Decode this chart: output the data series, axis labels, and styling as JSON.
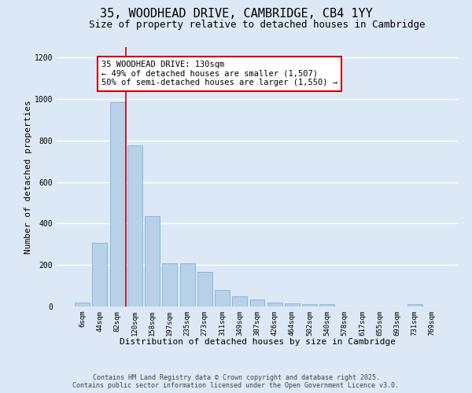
{
  "title_line1": "35, WOODHEAD DRIVE, CAMBRIDGE, CB4 1YY",
  "title_line2": "Size of property relative to detached houses in Cambridge",
  "xlabel": "Distribution of detached houses by size in Cambridge",
  "ylabel": "Number of detached properties",
  "categories": [
    "6sqm",
    "44sqm",
    "82sqm",
    "120sqm",
    "158sqm",
    "197sqm",
    "235sqm",
    "273sqm",
    "311sqm",
    "349sqm",
    "387sqm",
    "426sqm",
    "464sqm",
    "502sqm",
    "540sqm",
    "578sqm",
    "617sqm",
    "655sqm",
    "693sqm",
    "731sqm",
    "769sqm"
  ],
  "values": [
    20,
    305,
    985,
    775,
    435,
    210,
    210,
    165,
    80,
    50,
    35,
    20,
    15,
    10,
    10,
    0,
    0,
    0,
    0,
    10,
    0
  ],
  "bar_color": "#b8d0e8",
  "bar_edge_color": "#6baed6",
  "background_color": "#dce8f5",
  "grid_color": "#ffffff",
  "vline_color": "#cc0000",
  "annotation_text": "35 WOODHEAD DRIVE: 130sqm\n← 49% of detached houses are smaller (1,507)\n50% of semi-detached houses are larger (1,550) →",
  "annotation_box_color": "#ffffff",
  "annotation_box_edge": "#cc0000",
  "ylim": [
    0,
    1250
  ],
  "yticks": [
    0,
    200,
    400,
    600,
    800,
    1000,
    1200
  ],
  "footer_line1": "Contains HM Land Registry data © Crown copyright and database right 2025.",
  "footer_line2": "Contains public sector information licensed under the Open Government Licence v3.0.",
  "title_fontsize": 11,
  "subtitle_fontsize": 9,
  "axis_label_fontsize": 8,
  "tick_fontsize": 6.5,
  "annotation_fontsize": 7.5,
  "footer_fontsize": 6
}
